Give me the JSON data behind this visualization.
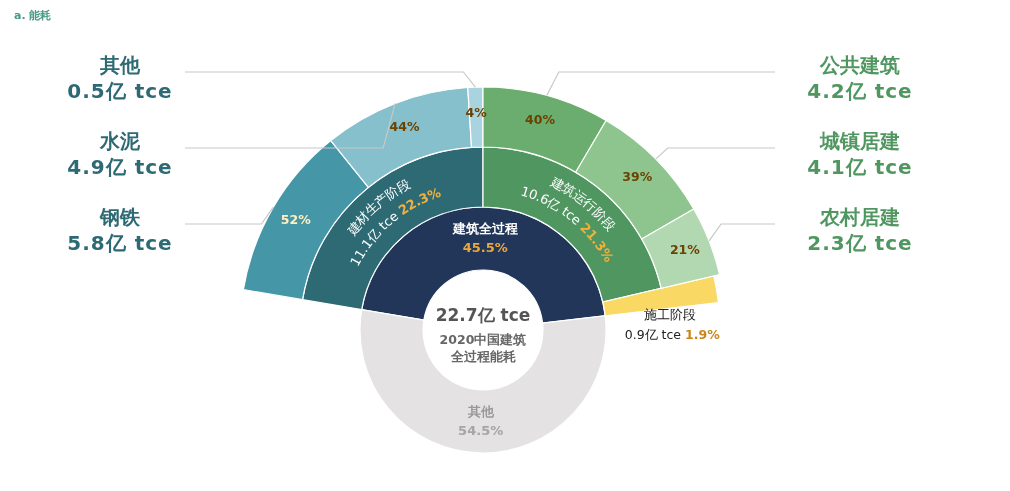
{
  "chart_data": {
    "type": "other",
    "title": "a. 能耗",
    "categories": [
      "建筑全过程",
      "其他",
      "建材生产阶段",
      "建筑运行阶段",
      "施工阶段",
      "钢铁",
      "水泥",
      "其他",
      "公共建筑",
      "城镇居建",
      "农村居建"
    ],
    "values": [
      45.5,
      54.5,
      11.1,
      10.6,
      0.9,
      5.8,
      4.9,
      0.5,
      4.2,
      4.1,
      2.3
    ],
    "colors": [
      "#223659",
      "#e4e2e2",
      "#2e6a74",
      "#4f9660",
      "#f9d864",
      "#4597a8",
      "#85c0cc",
      "#a9d3de",
      "#6aad6e",
      "#8ec48e",
      "#b1d8b1"
    ],
    "value_labels": [
      "45.5%",
      "54.5%",
      "11.1亿 tce",
      "10.6亿 tce",
      "0.9亿 tce",
      "5.8亿 tce",
      "4.9亿 tce",
      "0.5亿 tce",
      "4.2亿 tce",
      "4.1亿 tce",
      "2.3亿 tce"
    ],
    "annotations": [
      "22.7亿 tce",
      "2020中国建筑全过程能耗",
      "22.3%",
      "21.3%",
      "1.9%",
      "52%",
      "44%",
      "4%",
      "40%",
      "39%",
      "21%"
    ]
  }
}
